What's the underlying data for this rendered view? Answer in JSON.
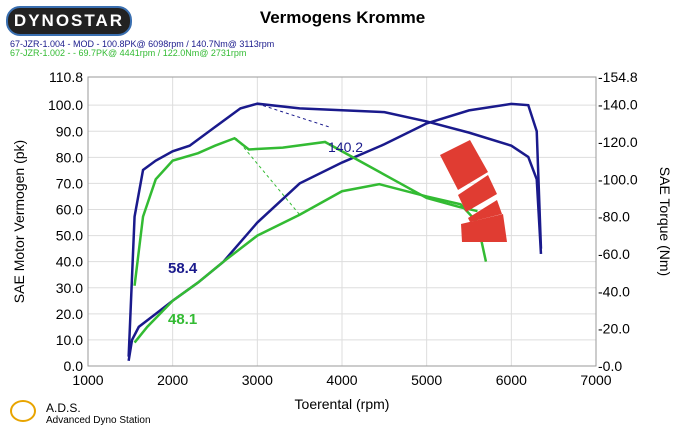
{
  "logo": "DYNOSTAR",
  "title": "Vermogens Kromme",
  "legend": [
    {
      "text": "67-JZR-1.004 - MOD  - 100.8PK@ 6098rpm / 140.7Nm@ 3113rpm",
      "color": "#1a1a8c"
    },
    {
      "text": "67-JZR-1.002 -  - 69.7PK@ 4441rpm / 122.0Nm@ 2731rpm",
      "color": "#33bb33"
    }
  ],
  "footer": {
    "name": "A.D.S.",
    "subtitle": "Advanced Dyno Station"
  },
  "chart_data": {
    "type": "line",
    "xlabel": "Toerental (rpm)",
    "ylabel": "SAE Motor Vermogen (pk)",
    "y2label": "SAE Torque (Nm)",
    "xlim": [
      1000,
      7000
    ],
    "ylim": [
      0,
      110.8
    ],
    "y2lim": [
      0,
      154.8
    ],
    "xticks": [
      "1000",
      "2000",
      "3000",
      "4000",
      "5000",
      "6000",
      "7000"
    ],
    "yticks": [
      "0.0",
      "10.0",
      "20.0",
      "30.0",
      "40.0",
      "50.0",
      "60.0",
      "70.0",
      "80.0",
      "90.0",
      "100.0",
      "110.8"
    ],
    "y2ticks": [
      "-0.0",
      "-20.0",
      "-40.0",
      "-60.0",
      "-80.0",
      "-100.0",
      "-120.0",
      "-140.0",
      "-154.8"
    ],
    "annotations": [
      "140.2",
      "58.4",
      "48.1"
    ],
    "series": [
      {
        "name": "67-JZR-1.004 power",
        "axis": "left",
        "color": "#1a1a8c",
        "x": [
          1480,
          1520,
          1600,
          1800,
          2000,
          2300,
          2600,
          3000,
          3500,
          4000,
          4500,
          5000,
          5500,
          6000,
          6200,
          6300,
          6350
        ],
        "y": [
          2,
          10,
          15,
          20,
          25,
          32,
          40,
          55,
          70,
          78,
          85,
          93,
          98,
          100.5,
          100,
          90,
          45
        ]
      },
      {
        "name": "67-JZR-1.004 torque",
        "axis": "right",
        "color": "#1a1a8c",
        "x": [
          1480,
          1550,
          1650,
          1800,
          2000,
          2200,
          2500,
          2800,
          3000,
          3500,
          4000,
          4500,
          5000,
          5500,
          6000,
          6200,
          6300,
          6350
        ],
        "y": [
          5,
          80,
          105,
          110,
          115,
          118,
          128,
          138,
          140.5,
          138,
          137,
          136,
          131,
          125,
          118,
          112,
          100,
          60
        ]
      },
      {
        "name": "67-JZR-1.002 power",
        "axis": "left",
        "color": "#33bb33",
        "x": [
          1550,
          1700,
          2000,
          2300,
          2600,
          3000,
          3500,
          4000,
          4441,
          5000,
          5400,
          5600,
          5700
        ],
        "y": [
          9,
          15,
          25,
          32,
          40,
          50,
          58,
          67,
          69.7,
          65,
          62,
          55,
          40
        ]
      },
      {
        "name": "67-JZR-1.002 torque",
        "axis": "right",
        "color": "#33bb33",
        "x": [
          1550,
          1650,
          1800,
          2000,
          2300,
          2500,
          2731,
          2900,
          3300,
          3800,
          4200,
          4600,
          5000,
          5400,
          5600
        ],
        "y": [
          43,
          80,
          100,
          110,
          114,
          118,
          122,
          116,
          117,
          120,
          110,
          100,
          90,
          85,
          83
        ]
      }
    ]
  }
}
